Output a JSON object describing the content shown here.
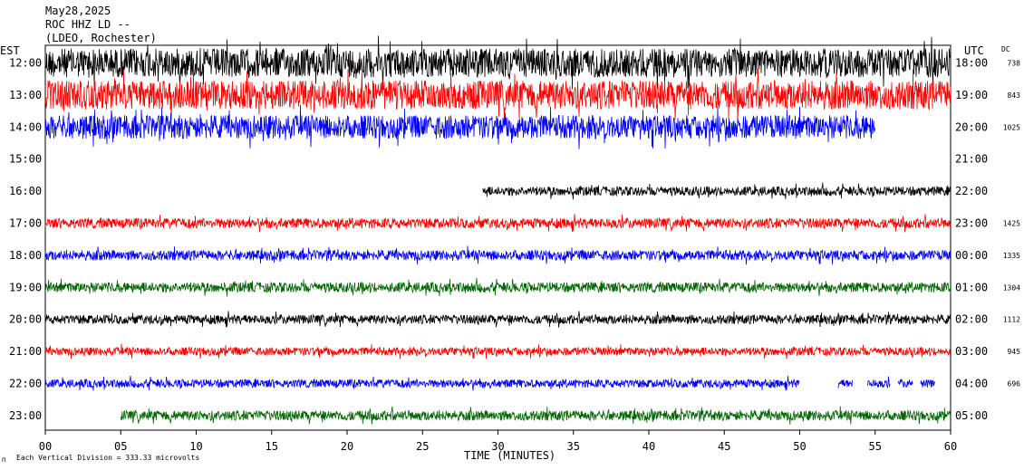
{
  "header": {
    "date": "May28,2025",
    "station": "ROC HHZ LD --",
    "network": "(LDEO, Rochester)"
  },
  "axes": {
    "left_zone": "EST",
    "right_zone": "UTC",
    "dc_label": "DC",
    "xlabel": "TIME (MINUTES)",
    "footer_note": "Each Vertical Division =  333.33 microvolts"
  },
  "colors": {
    "black": "#000000",
    "red": "#ff0000",
    "blue": "#0000ff",
    "green": "#006400"
  },
  "chart_data": {
    "type": "line",
    "title": "May28,2025",
    "xlabel": "TIME (MINUTES)",
    "ylabel": "EST",
    "xlim": [
      0,
      60
    ],
    "x_ticks": [
      "00",
      "05",
      "10",
      "15",
      "20",
      "25",
      "30",
      "35",
      "40",
      "45",
      "50",
      "55",
      "60"
    ],
    "rows": [
      {
        "est": "12:00",
        "utc": "18:00",
        "dc": "738",
        "color": "black",
        "amp": 1.6,
        "start": 0,
        "end": 60,
        "gaps": []
      },
      {
        "est": "13:00",
        "utc": "19:00",
        "dc": "843",
        "color": "red",
        "amp": 1.6,
        "start": 0,
        "end": 60,
        "gaps": []
      },
      {
        "est": "14:00",
        "utc": "20:00",
        "dc": "1025",
        "color": "blue",
        "amp": 1.3,
        "start": 0,
        "end": 55,
        "gaps": []
      },
      {
        "est": "15:00",
        "utc": "21:00",
        "dc": "",
        "color": "green",
        "amp": 0.0,
        "start": 0,
        "end": 0,
        "gaps": []
      },
      {
        "est": "16:00",
        "utc": "22:00",
        "dc": "",
        "color": "black",
        "amp": 0.5,
        "start": 29,
        "end": 60,
        "gaps": []
      },
      {
        "est": "17:00",
        "utc": "23:00",
        "dc": "1425",
        "color": "red",
        "amp": 0.55,
        "start": 0,
        "end": 60,
        "gaps": []
      },
      {
        "est": "18:00",
        "utc": "00:00",
        "dc": "1335",
        "color": "blue",
        "amp": 0.55,
        "start": 0,
        "end": 60,
        "gaps": []
      },
      {
        "est": "19:00",
        "utc": "01:00",
        "dc": "1304",
        "color": "green",
        "amp": 0.55,
        "start": 0,
        "end": 60,
        "gaps": []
      },
      {
        "est": "20:00",
        "utc": "02:00",
        "dc": "1112",
        "color": "black",
        "amp": 0.5,
        "start": 0,
        "end": 60,
        "gaps": []
      },
      {
        "est": "21:00",
        "utc": "03:00",
        "dc": "945",
        "color": "red",
        "amp": 0.45,
        "start": 0,
        "end": 60,
        "gaps": []
      },
      {
        "est": "22:00",
        "utc": "04:00",
        "dc": "696",
        "color": "blue",
        "amp": 0.45,
        "start": 0,
        "end": 59,
        "gaps": [
          [
            50,
            52.5
          ],
          [
            53.5,
            54.5
          ],
          [
            56,
            56.5
          ],
          [
            57.5,
            58
          ]
        ]
      },
      {
        "est": "23:00",
        "utc": "05:00",
        "dc": "",
        "color": "green",
        "amp": 0.55,
        "start": 5,
        "end": 60,
        "gaps": []
      }
    ],
    "grid": false,
    "legend": "none"
  }
}
